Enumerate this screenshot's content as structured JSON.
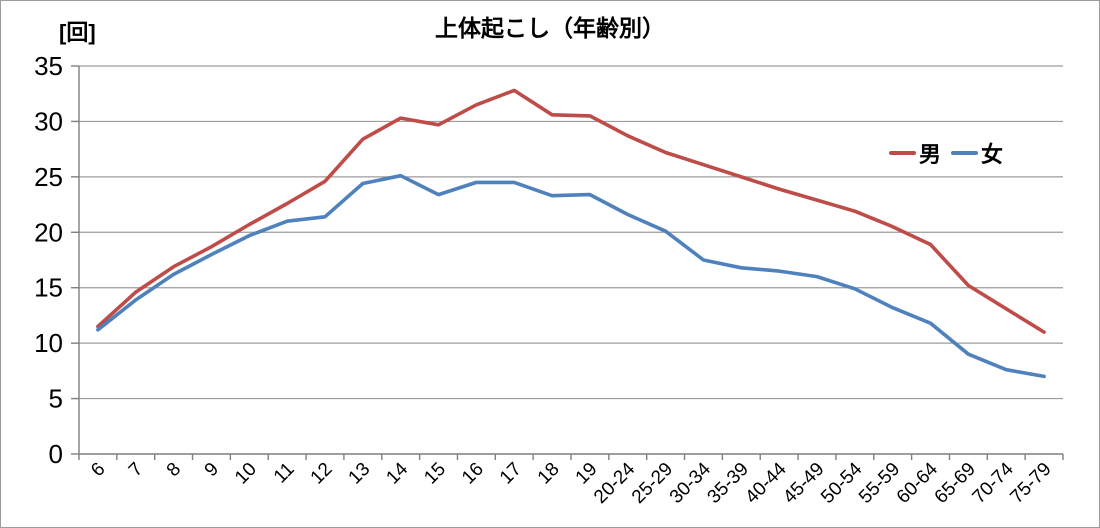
{
  "chart_data": {
    "type": "line",
    "title": "上体起こし（年齢別）",
    "y_unit_label": "[回]",
    "xlabel": "",
    "ylabel": "回",
    "ylim": [
      0,
      35
    ],
    "yticks": [
      0,
      5,
      10,
      15,
      20,
      25,
      30,
      35
    ],
    "grid": "horizontal",
    "legend_position": "inside-right-upper",
    "categories": [
      "6",
      "7",
      "8",
      "9",
      "10",
      "11",
      "12",
      "13",
      "14",
      "15",
      "16",
      "17",
      "18",
      "19",
      "20-24",
      "25-29",
      "30-34",
      "35-39",
      "40-44",
      "45-49",
      "50-54",
      "55-59",
      "60-64",
      "65-69",
      "70-74",
      "75-79"
    ],
    "series": [
      {
        "name": "男",
        "color": "#BE4C48",
        "values": [
          11.5,
          14.6,
          16.9,
          18.7,
          20.7,
          22.6,
          24.6,
          28.4,
          30.3,
          29.7,
          31.5,
          32.8,
          30.6,
          30.5,
          28.7,
          27.2,
          26.1,
          25.0,
          23.9,
          22.9,
          21.9,
          20.5,
          18.9,
          15.2,
          13.1,
          11.0
        ]
      },
      {
        "name": "女",
        "color": "#4F81BD",
        "values": [
          11.2,
          13.9,
          16.2,
          18.0,
          19.7,
          21.0,
          21.4,
          24.4,
          25.1,
          23.4,
          24.5,
          24.5,
          23.3,
          23.4,
          21.6,
          20.1,
          17.5,
          16.8,
          16.5,
          16.0,
          14.9,
          13.2,
          11.8,
          9.0,
          7.6,
          7.0
        ]
      }
    ],
    "style": {
      "gridline_color": "#9c9c9c",
      "axis_color": "#7f7f7f",
      "tick_label_color": "#000000",
      "background": "#ffffff"
    }
  }
}
